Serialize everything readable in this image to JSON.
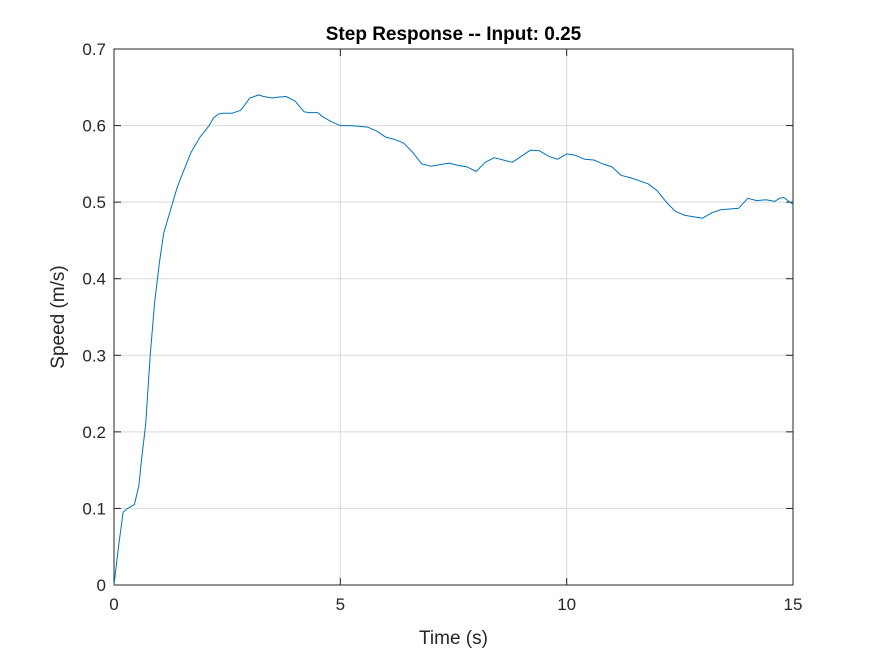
{
  "chart_data": {
    "type": "line",
    "title": "Step Response -- Input: 0.25",
    "xlabel": "Time (s)",
    "ylabel": "Speed (m/s)",
    "xlim": [
      0,
      15
    ],
    "ylim": [
      0,
      0.7
    ],
    "xticks": [
      "0",
      "5",
      "10",
      "15"
    ],
    "yticks": [
      "0",
      "0.1",
      "0.2",
      "0.3",
      "0.4",
      "0.5",
      "0.6",
      "0.7"
    ],
    "grid": true,
    "legend": false,
    "colors": {
      "series": "#0072bd",
      "grid": "#d9d9d9",
      "axis": "#262626"
    },
    "series": [
      {
        "x": [
          0,
          0.1,
          0.2,
          0.3,
          0.45,
          0.55,
          0.6,
          0.7,
          0.8,
          0.9,
          1.0,
          1.05,
          1.1,
          1.2,
          1.3,
          1.4,
          1.5,
          1.6,
          1.7,
          1.8,
          1.9,
          2.0,
          2.1,
          2.2,
          2.3,
          2.4,
          2.5,
          2.6,
          2.8,
          3.0,
          3.2,
          3.3,
          3.4,
          3.5,
          3.6,
          3.8,
          4.0,
          4.1,
          4.2,
          4.3,
          4.5,
          4.6,
          4.8,
          5.0,
          5.2,
          5.4,
          5.6,
          5.8,
          6.0,
          6.2,
          6.4,
          6.6,
          6.8,
          7.0,
          7.2,
          7.4,
          7.6,
          7.8,
          8.0,
          8.2,
          8.4,
          8.6,
          8.8,
          9.0,
          9.2,
          9.4,
          9.6,
          9.8,
          10.0,
          10.2,
          10.4,
          10.6,
          10.8,
          11.0,
          11.2,
          11.4,
          11.6,
          11.8,
          12.0,
          12.2,
          12.4,
          12.6,
          12.8,
          13.0,
          13.2,
          13.4,
          13.6,
          13.8,
          14.0,
          14.2,
          14.4,
          14.6,
          14.7,
          14.8,
          15.0
        ],
        "y": [
          0,
          0.05,
          0.095,
          0.1,
          0.105,
          0.13,
          0.16,
          0.21,
          0.3,
          0.37,
          0.42,
          0.44,
          0.46,
          0.48,
          0.5,
          0.52,
          0.535,
          0.55,
          0.565,
          0.575,
          0.585,
          0.592,
          0.6,
          0.61,
          0.615,
          0.616,
          0.616,
          0.616,
          0.62,
          0.636,
          0.64,
          0.638,
          0.637,
          0.636,
          0.637,
          0.638,
          0.632,
          0.625,
          0.618,
          0.617,
          0.617,
          0.612,
          0.605,
          0.6,
          0.6,
          0.599,
          0.598,
          0.593,
          0.585,
          0.582,
          0.577,
          0.565,
          0.55,
          0.547,
          0.549,
          0.551,
          0.548,
          0.546,
          0.54,
          0.552,
          0.558,
          0.555,
          0.552,
          0.56,
          0.568,
          0.567,
          0.56,
          0.556,
          0.563,
          0.561,
          0.556,
          0.555,
          0.55,
          0.546,
          0.535,
          0.532,
          0.528,
          0.524,
          0.515,
          0.5,
          0.488,
          0.483,
          0.481,
          0.479,
          0.486,
          0.49,
          0.491,
          0.492,
          0.505,
          0.502,
          0.503,
          0.501,
          0.505,
          0.506,
          0.497
        ]
      }
    ]
  }
}
